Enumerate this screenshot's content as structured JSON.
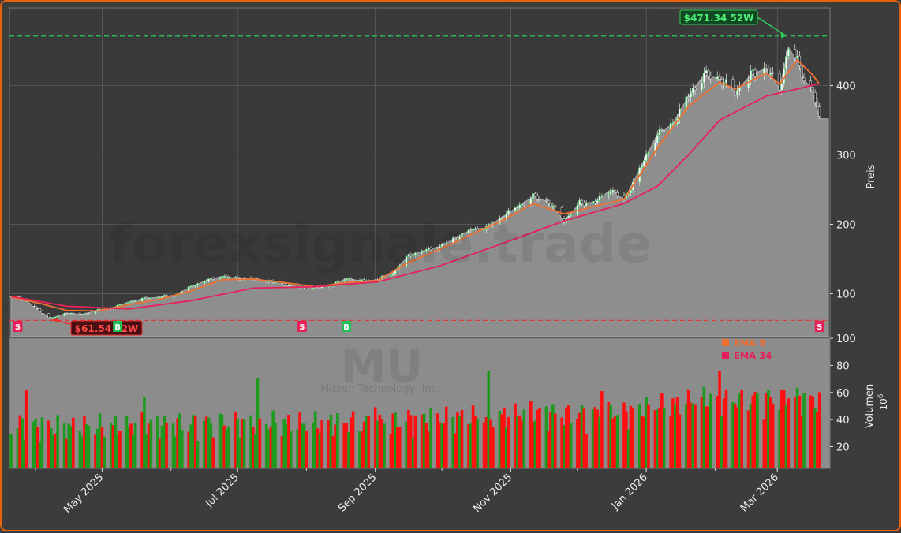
{
  "chart_data": {
    "type": "candlestick",
    "ticker": "MU",
    "company": "Micron Technology, Inc.",
    "watermark": "forexsignale.trade",
    "ylabel_price": "Preis",
    "ylabel_volume": "Volumen",
    "volume_unit": "10",
    "volume_unit_exp": "6",
    "price_ticks": [
      100,
      200,
      300,
      400
    ],
    "volume_ticks": [
      20,
      40,
      60,
      80,
      100
    ],
    "price_ylim": [
      38,
      512
    ],
    "volume_ylim": [
      4,
      100
    ],
    "x_tick_labels": [
      "May 2025",
      "Jul 2025",
      "Sep 2025",
      "Nov 2025",
      "Jan 2026",
      "Mar 2026"
    ],
    "x_tick_dates": [
      "2025-05-01",
      "2025-07-01",
      "2025-09-01",
      "2025-11-01",
      "2026-01-01",
      "2026-03-01"
    ],
    "x_range": [
      "2025-03-21",
      "2026-03-24"
    ],
    "high_52w": {
      "label": "$471.34 52W",
      "value": 471.34,
      "date": "2026-03-06"
    },
    "low_52w": {
      "label": "$61.54 52W",
      "value": 61.54,
      "date": "2025-04-08"
    },
    "legend": [
      {
        "name": "EMA 8",
        "color": "#f07030"
      },
      {
        "name": "EMA 34",
        "color": "#e8205a"
      }
    ],
    "signals": [
      {
        "type": "S",
        "date": "2025-03-24"
      },
      {
        "type": "B",
        "date": "2025-05-08"
      },
      {
        "type": "S",
        "date": "2025-07-30"
      },
      {
        "type": "B",
        "date": "2025-08-19"
      },
      {
        "type": "S",
        "date": "2026-03-20"
      }
    ],
    "close_path": [
      [
        "2025-03-21",
        95
      ],
      [
        "2025-03-27",
        92
      ],
      [
        "2025-04-03",
        75
      ],
      [
        "2025-04-08",
        64
      ],
      [
        "2025-04-15",
        72
      ],
      [
        "2025-04-22",
        70
      ],
      [
        "2025-04-29",
        76
      ],
      [
        "2025-05-06",
        80
      ],
      [
        "2025-05-13",
        88
      ],
      [
        "2025-05-20",
        93
      ],
      [
        "2025-05-27",
        95
      ],
      [
        "2025-06-03",
        98
      ],
      [
        "2025-06-10",
        110
      ],
      [
        "2025-06-17",
        119
      ],
      [
        "2025-06-24",
        125
      ],
      [
        "2025-07-01",
        122
      ],
      [
        "2025-07-08",
        121
      ],
      [
        "2025-07-15",
        118
      ],
      [
        "2025-07-22",
        113
      ],
      [
        "2025-07-29",
        110
      ],
      [
        "2025-08-05",
        108
      ],
      [
        "2025-08-12",
        112
      ],
      [
        "2025-08-19",
        122
      ],
      [
        "2025-08-26",
        118
      ],
      [
        "2025-09-02",
        120
      ],
      [
        "2025-09-09",
        130
      ],
      [
        "2025-09-16",
        155
      ],
      [
        "2025-09-23",
        162
      ],
      [
        "2025-09-30",
        168
      ],
      [
        "2025-10-07",
        180
      ],
      [
        "2025-10-14",
        192
      ],
      [
        "2025-10-21",
        195
      ],
      [
        "2025-10-28",
        210
      ],
      [
        "2025-11-04",
        225
      ],
      [
        "2025-11-11",
        240
      ],
      [
        "2025-11-18",
        232
      ],
      [
        "2025-11-25",
        205
      ],
      [
        "2025-12-02",
        230
      ],
      [
        "2025-12-09",
        232
      ],
      [
        "2025-12-16",
        250
      ],
      [
        "2025-12-22",
        235
      ],
      [
        "2025-12-30",
        285
      ],
      [
        "2026-01-06",
        330
      ],
      [
        "2026-01-13",
        345
      ],
      [
        "2026-01-20",
        385
      ],
      [
        "2026-01-27",
        415
      ],
      [
        "2026-02-03",
        410
      ],
      [
        "2026-02-10",
        390
      ],
      [
        "2026-02-17",
        415
      ],
      [
        "2026-02-24",
        425
      ],
      [
        "2026-03-02",
        395
      ],
      [
        "2026-03-06",
        455
      ],
      [
        "2026-03-10",
        435
      ],
      [
        "2026-03-13",
        410
      ],
      [
        "2026-03-17",
        390
      ],
      [
        "2026-03-20",
        352
      ],
      [
        "2026-03-24",
        352
      ]
    ],
    "ema8": [
      [
        "2025-03-21",
        95
      ],
      [
        "2025-04-03",
        86
      ],
      [
        "2025-04-15",
        76
      ],
      [
        "2025-04-29",
        75
      ],
      [
        "2025-05-13",
        84
      ],
      [
        "2025-05-27",
        92
      ],
      [
        "2025-06-10",
        104
      ],
      [
        "2025-06-24",
        120
      ],
      [
        "2025-07-08",
        121
      ],
      [
        "2025-07-22",
        116
      ],
      [
        "2025-08-05",
        110
      ],
      [
        "2025-08-19",
        116
      ],
      [
        "2025-09-02",
        119
      ],
      [
        "2025-09-16",
        145
      ],
      [
        "2025-09-30",
        164
      ],
      [
        "2025-10-14",
        185
      ],
      [
        "2025-10-28",
        205
      ],
      [
        "2025-11-11",
        230
      ],
      [
        "2025-11-25",
        215
      ],
      [
        "2025-12-09",
        226
      ],
      [
        "2025-12-22",
        236
      ],
      [
        "2026-01-06",
        310
      ],
      [
        "2026-01-20",
        370
      ],
      [
        "2026-02-03",
        405
      ],
      [
        "2026-02-10",
        395
      ],
      [
        "2026-02-24",
        418
      ],
      [
        "2026-03-02",
        402
      ],
      [
        "2026-03-10",
        437
      ],
      [
        "2026-03-17",
        415
      ],
      [
        "2026-03-20",
        402
      ]
    ],
    "ema34": [
      [
        "2025-03-21",
        96
      ],
      [
        "2025-04-15",
        82
      ],
      [
        "2025-05-13",
        78
      ],
      [
        "2025-06-10",
        90
      ],
      [
        "2025-07-08",
        108
      ],
      [
        "2025-08-05",
        110
      ],
      [
        "2025-09-02",
        117
      ],
      [
        "2025-09-30",
        140
      ],
      [
        "2025-10-28",
        172
      ],
      [
        "2025-11-25",
        205
      ],
      [
        "2025-12-22",
        230
      ],
      [
        "2026-01-06",
        255
      ],
      [
        "2026-01-20",
        300
      ],
      [
        "2026-02-03",
        350
      ],
      [
        "2026-02-24",
        385
      ],
      [
        "2026-03-10",
        395
      ],
      [
        "2026-03-20",
        403
      ]
    ],
    "volume_series": [
      {
        "name": "up",
        "color": "#1e9a1e"
      },
      {
        "name": "down",
        "color": "#ff1010"
      }
    ]
  }
}
